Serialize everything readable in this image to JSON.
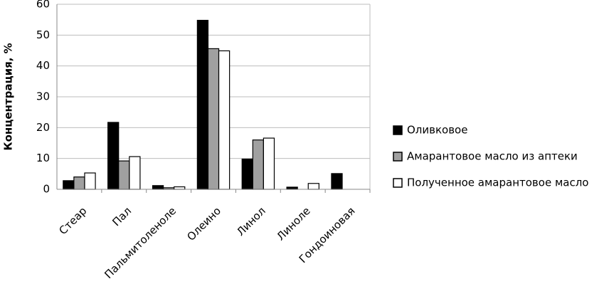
{
  "chart_data": {
    "type": "bar",
    "y_label": "Концентрация, %",
    "categories": [
      "Стеар",
      "Пал",
      "Пальмитоленоле",
      "Олеино",
      "Линол",
      "Линоле",
      "Гондоиновая"
    ],
    "series": [
      {
        "name": "Оливковое",
        "color": "#000000",
        "values": [
          2.8,
          21.7,
          1.2,
          54.8,
          9.8,
          0.7,
          5.1
        ]
      },
      {
        "name": "Амарантовое масло из аптеки",
        "color": "#a0a0a0",
        "values": [
          4.0,
          9.2,
          0.5,
          45.6,
          16.0,
          0,
          0
        ]
      },
      {
        "name": "Полученное амарантовое масло",
        "color": "#ffffff",
        "values": [
          5.3,
          10.6,
          0.8,
          44.9,
          16.6,
          1.9,
          0
        ]
      }
    ],
    "ylim": [
      0,
      60
    ],
    "yticks": [
      0,
      10,
      20,
      30,
      40,
      50,
      60
    ],
    "grid": true,
    "legend": "right"
  }
}
